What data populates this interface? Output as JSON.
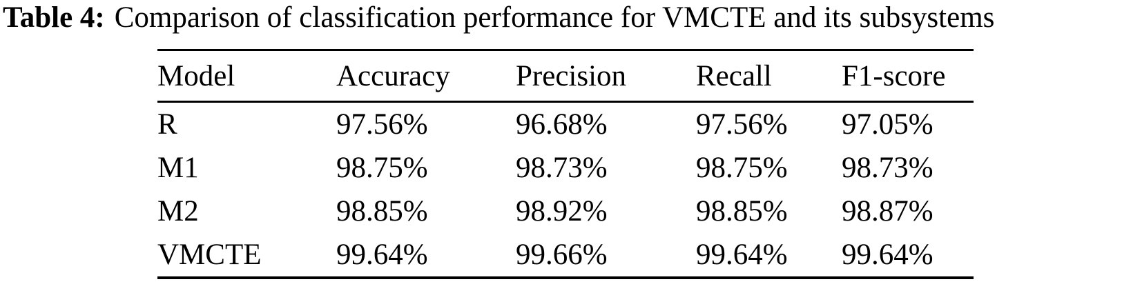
{
  "caption": {
    "label": "Table 4:",
    "text": "Comparison of classification performance for VMCTE and its subsystems"
  },
  "table": {
    "headers": [
      "Model",
      "Accuracy",
      "Precision",
      "Recall",
      "F1-score"
    ],
    "rows": [
      {
        "cells": [
          "R",
          "97.56%",
          "96.68%",
          "97.56%",
          "97.05%"
        ]
      },
      {
        "cells": [
          "M1",
          "98.75%",
          "98.73%",
          "98.75%",
          "98.73%"
        ]
      },
      {
        "cells": [
          "M2",
          "98.85%",
          "98.92%",
          "98.85%",
          "98.87%"
        ]
      },
      {
        "cells": [
          "VMCTE",
          "99.64%",
          "99.66%",
          "99.64%",
          "99.64%"
        ]
      }
    ]
  },
  "colors": {
    "text": "#000000",
    "background": "#ffffff",
    "rule": "#000000"
  }
}
